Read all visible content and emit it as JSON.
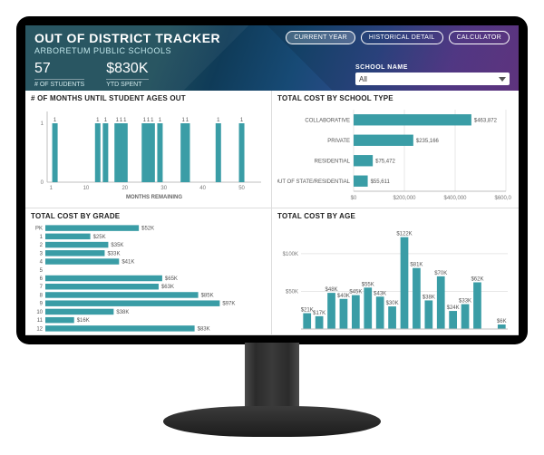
{
  "colors": {
    "bar": "#3a9da6",
    "grid": "#e7e7e7",
    "axis": "#bfbfbf",
    "text": "#555555",
    "panel_title": "#222222",
    "background": "#ffffff"
  },
  "header": {
    "title": "OUT OF DISTRICT TRACKER",
    "subtitle": "ARBORETUM PUBLIC SCHOOLS",
    "buttons": {
      "current_year": "CURRENT YEAR",
      "historical": "HISTORICAL DETAIL",
      "calculator": "CALCULATOR"
    },
    "metrics": {
      "students": {
        "value": "57",
        "label": "# OF STUDENTS"
      },
      "ytd": {
        "value": "$830K",
        "label": "YTD SPENT"
      }
    },
    "filter": {
      "label": "SCHOOL NAME",
      "selected": "All"
    }
  },
  "panel1": {
    "title": "# OF MONTHS UNTIL STUDENT AGES OUT",
    "x_axis_label": "MONTHS REMAINING",
    "type": "bar",
    "ylim": [
      0,
      1.2
    ],
    "yticks": [
      0,
      1
    ],
    "x_min": 0,
    "x_max": 55,
    "x_ticks": [
      1,
      10,
      20,
      30,
      40,
      50
    ],
    "bars": [
      {
        "x": 2,
        "v": 1
      },
      {
        "x": 13,
        "v": 1
      },
      {
        "x": 15,
        "v": 1
      },
      {
        "x": 18,
        "v": 1
      },
      {
        "x": 19,
        "v": 1
      },
      {
        "x": 20,
        "v": 1
      },
      {
        "x": 25,
        "v": 1
      },
      {
        "x": 26,
        "v": 1
      },
      {
        "x": 27,
        "v": 1
      },
      {
        "x": 29,
        "v": 1
      },
      {
        "x": 35,
        "v": 1
      },
      {
        "x": 36,
        "v": 1
      },
      {
        "x": 44,
        "v": 1
      },
      {
        "x": 50,
        "v": 1
      }
    ],
    "data_label": "1"
  },
  "panel2": {
    "title": "TOTAL COST BY SCHOOL TYPE",
    "type": "hbar",
    "xlim": [
      0,
      600000
    ],
    "xticks": [
      {
        "v": 0,
        "l": "$0"
      },
      {
        "v": 200000,
        "l": "$200,000"
      },
      {
        "v": 400000,
        "l": "$400,000"
      },
      {
        "v": 600000,
        "l": "$600,000"
      }
    ],
    "rows": [
      {
        "cat": "COLLABORATIVE",
        "v": 463872,
        "lbl": "$463,872"
      },
      {
        "cat": "PRIVATE",
        "v": 235166,
        "lbl": "$235,166"
      },
      {
        "cat": "RESIDENTIAL",
        "v": 75472,
        "lbl": "$75,472"
      },
      {
        "cat": "OUT OF STATE/RESIDENTIAL",
        "v": 55611,
        "lbl": "$55,611"
      }
    ]
  },
  "panel3": {
    "title": "TOTAL COST BY GRADE",
    "type": "hbar",
    "xlim": [
      0,
      120000
    ],
    "grades": [
      {
        "g": "PK",
        "v": 52000,
        "lbl": "$52K"
      },
      {
        "g": "1",
        "v": 25000,
        "lbl": "$25K"
      },
      {
        "g": "2",
        "v": 35000,
        "lbl": "$35K"
      },
      {
        "g": "3",
        "v": 33000,
        "lbl": "$33K"
      },
      {
        "g": "4",
        "v": 41000,
        "lbl": "$41K"
      },
      {
        "g": "5",
        "v": 0,
        "lbl": ""
      },
      {
        "g": "6",
        "v": 65000,
        "lbl": "$65K"
      },
      {
        "g": "7",
        "v": 63000,
        "lbl": "$63K"
      },
      {
        "g": "8",
        "v": 85000,
        "lbl": "$85K"
      },
      {
        "g": "9",
        "v": 97000,
        "lbl": "$97K"
      },
      {
        "g": "10",
        "v": 38000,
        "lbl": "$38K"
      },
      {
        "g": "11",
        "v": 16000,
        "lbl": "$16K"
      },
      {
        "g": "12",
        "v": 83000,
        "lbl": "$83K"
      }
    ]
  },
  "panel4": {
    "title": "TOTAL COST BY AGE",
    "type": "bar",
    "ylim": [
      0,
      130000
    ],
    "yticks": [
      {
        "v": 0,
        "l": ""
      },
      {
        "v": 50000,
        "l": "$50K"
      },
      {
        "v": 100000,
        "l": "$100K"
      }
    ],
    "bars": [
      {
        "v": 21000,
        "lbl": "$21K"
      },
      {
        "v": 17000,
        "lbl": "$17K"
      },
      {
        "v": 48000,
        "lbl": "$48K"
      },
      {
        "v": 40000,
        "lbl": "$40K"
      },
      {
        "v": 45000,
        "lbl": "$45K"
      },
      {
        "v": 55000,
        "lbl": "$55K"
      },
      {
        "v": 43000,
        "lbl": "$43K"
      },
      {
        "v": 30000,
        "lbl": "$30K"
      },
      {
        "v": 122000,
        "lbl": "$122K"
      },
      {
        "v": 81000,
        "lbl": "$81K"
      },
      {
        "v": 38000,
        "lbl": "$38K"
      },
      {
        "v": 70000,
        "lbl": "$70K"
      },
      {
        "v": 24000,
        "lbl": "$24K"
      },
      {
        "v": 33000,
        "lbl": "$33K"
      },
      {
        "v": 62000,
        "lbl": "$62K"
      },
      {
        "v": 0,
        "lbl": ""
      },
      {
        "v": 6000,
        "lbl": "$6K"
      }
    ]
  }
}
